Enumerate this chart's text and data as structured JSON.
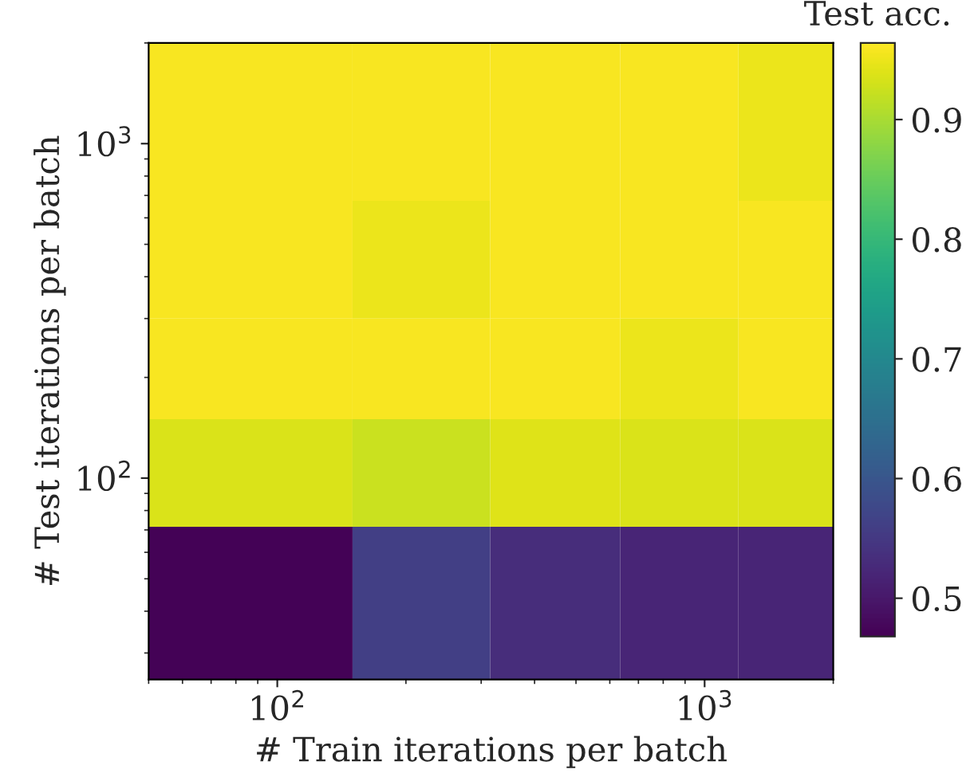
{
  "chart_data": {
    "type": "heatmap",
    "xlabel": "# Train iterations per batch",
    "ylabel": "# Test iterations per batch",
    "clabel": "Test acc.",
    "log": "xy",
    "x": [
      90,
      210,
      420,
      850,
      1550
    ],
    "y": [
      950,
      400,
      200,
      100,
      43
    ],
    "cells": [
      [
        0.96,
        0.96,
        0.96,
        0.96,
        0.95
      ],
      [
        0.96,
        0.95,
        0.96,
        0.96,
        0.96
      ],
      [
        0.96,
        0.96,
        0.96,
        0.95,
        0.96
      ],
      [
        0.935,
        0.925,
        0.94,
        0.935,
        0.935
      ],
      [
        0.47,
        0.56,
        0.53,
        0.52,
        0.52
      ]
    ],
    "xlim": [
      50,
      2000
    ],
    "ylim": [
      25,
      2000
    ],
    "xticks": [
      {
        "value": 100,
        "label": "10$^{2}$"
      },
      {
        "value": 1000,
        "label": "10$^{3}$"
      }
    ],
    "yticks": [
      {
        "value": 100,
        "label": "10$^{2}$"
      },
      {
        "value": 1000,
        "label": "10$^{3}$"
      }
    ],
    "clim": [
      0.468,
      0.964
    ],
    "cticks": [
      0.5,
      0.6,
      0.7,
      0.8,
      0.9
    ]
  }
}
